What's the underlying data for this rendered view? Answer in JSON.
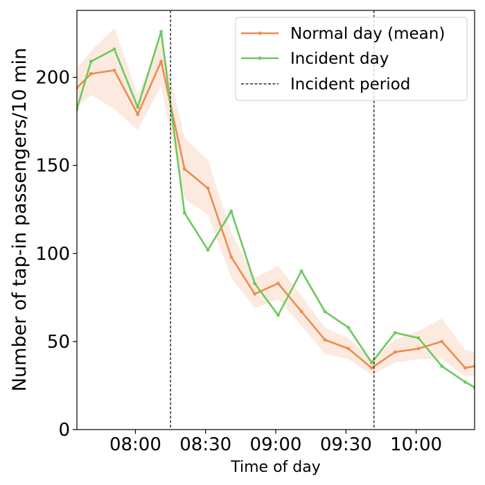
{
  "chart_data": {
    "type": "line",
    "title": "",
    "xlabel": "Time of day",
    "ylabel": "Number of tap-in passengers/10 min",
    "x_unit": "minutes since 07:35",
    "xlim": [
      0,
      170
    ],
    "ylim": [
      0,
      238
    ],
    "x_ticks": [
      {
        "x": 25,
        "label": "08:00"
      },
      {
        "x": 55,
        "label": "08:30"
      },
      {
        "x": 85,
        "label": "09:00"
      },
      {
        "x": 115,
        "label": "09:30"
      },
      {
        "x": 145,
        "label": "10:00"
      }
    ],
    "y_ticks": [
      {
        "y": 0,
        "label": "0"
      },
      {
        "y": 50,
        "label": "50"
      },
      {
        "y": 100,
        "label": "100"
      },
      {
        "y": 150,
        "label": "150"
      },
      {
        "y": 200,
        "label": "200"
      }
    ],
    "grid": false,
    "legend_position": "top-right",
    "series": [
      {
        "name": "Normal day (mean)",
        "color": "#ef8a4c",
        "band_color": "#fbe3d6",
        "x": [
          0,
          6,
          16,
          26,
          36,
          46,
          56,
          66,
          76,
          86,
          96,
          106,
          116,
          126,
          136,
          146,
          156,
          166,
          170
        ],
        "values": [
          194,
          202,
          204,
          179,
          209,
          148,
          137,
          98,
          77,
          83,
          67,
          51,
          46,
          35,
          44,
          46,
          50,
          35,
          36
        ],
        "band_upper": [
          205,
          215,
          228,
          190,
          222,
          166,
          153,
          112,
          86,
          93,
          76,
          58,
          52,
          40,
          51,
          56,
          63,
          45,
          44
        ],
        "band_lower": [
          183,
          190,
          182,
          170,
          195,
          131,
          122,
          86,
          69,
          74,
          59,
          43,
          40,
          31,
          38,
          40,
          40,
          30,
          31
        ]
      },
      {
        "name": "Incident day",
        "color": "#6cc95e",
        "x": [
          0,
          6,
          16,
          26,
          36,
          46,
          56,
          66,
          76,
          86,
          96,
          106,
          116,
          126,
          136,
          146,
          156,
          166,
          170
        ],
        "values": [
          182,
          209,
          216,
          183,
          226,
          123,
          102,
          124,
          83,
          65,
          90,
          67,
          58,
          38,
          55,
          52,
          36,
          27,
          24
        ]
      }
    ],
    "incident_period": {
      "name": "Incident period",
      "start": 40,
      "end": 127,
      "color": "#000000"
    }
  }
}
